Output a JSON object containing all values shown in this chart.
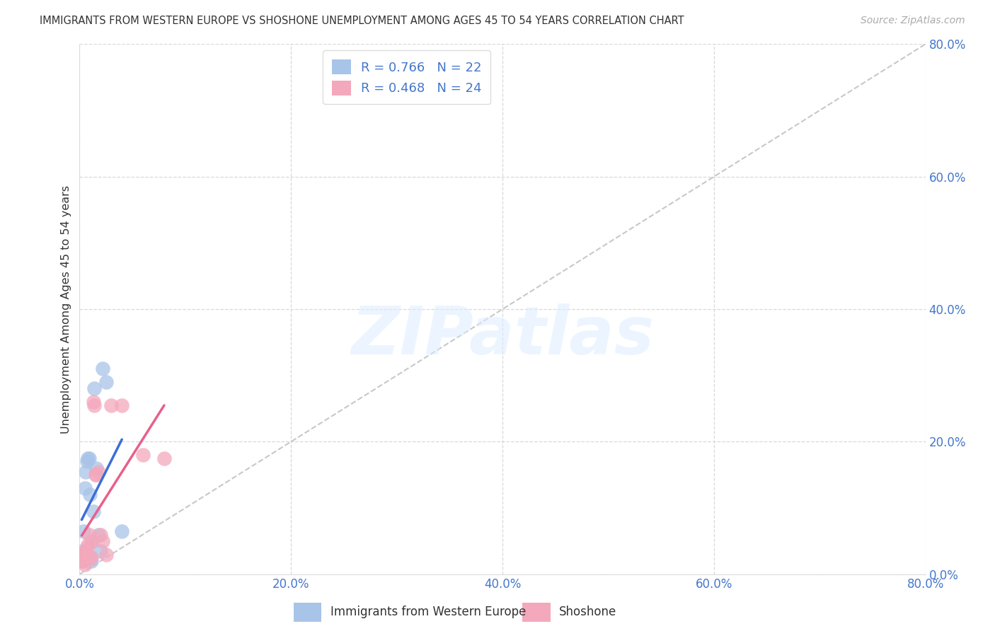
{
  "title": "IMMIGRANTS FROM WESTERN EUROPE VS SHOSHONE UNEMPLOYMENT AMONG AGES 45 TO 54 YEARS CORRELATION CHART",
  "source": "Source: ZipAtlas.com",
  "ylabel": "Unemployment Among Ages 45 to 54 years",
  "xlim": [
    0,
    0.8
  ],
  "ylim": [
    0,
    0.8
  ],
  "yticks": [
    0.0,
    0.2,
    0.4,
    0.6,
    0.8
  ],
  "xticks": [
    0.0,
    0.2,
    0.4,
    0.6,
    0.8
  ],
  "blue_R": 0.766,
  "blue_N": 22,
  "pink_R": 0.468,
  "pink_N": 24,
  "blue_color": "#a8c4e8",
  "pink_color": "#f4a8bc",
  "blue_line_color": "#3a6fd8",
  "pink_line_color": "#e8608a",
  "diagonal_color": "#c8c8c8",
  "watermark_text": "ZIPatlas",
  "blue_scatter_x": [
    0.002,
    0.003,
    0.003,
    0.004,
    0.004,
    0.005,
    0.005,
    0.006,
    0.007,
    0.008,
    0.009,
    0.01,
    0.011,
    0.012,
    0.013,
    0.014,
    0.016,
    0.018,
    0.02,
    0.022,
    0.025,
    0.04
  ],
  "blue_scatter_y": [
    0.02,
    0.028,
    0.035,
    0.02,
    0.065,
    0.03,
    0.13,
    0.155,
    0.17,
    0.175,
    0.175,
    0.12,
    0.02,
    0.05,
    0.095,
    0.28,
    0.16,
    0.06,
    0.035,
    0.31,
    0.29,
    0.065
  ],
  "pink_scatter_x": [
    0.002,
    0.003,
    0.003,
    0.004,
    0.005,
    0.006,
    0.007,
    0.008,
    0.009,
    0.01,
    0.011,
    0.012,
    0.013,
    0.014,
    0.015,
    0.016,
    0.018,
    0.02,
    0.022,
    0.025,
    0.03,
    0.04,
    0.06,
    0.08
  ],
  "pink_scatter_y": [
    0.025,
    0.025,
    0.02,
    0.03,
    0.015,
    0.035,
    0.04,
    0.045,
    0.06,
    0.025,
    0.025,
    0.05,
    0.26,
    0.255,
    0.15,
    0.15,
    0.155,
    0.06,
    0.05,
    0.03,
    0.255,
    0.255,
    0.18,
    0.175
  ]
}
